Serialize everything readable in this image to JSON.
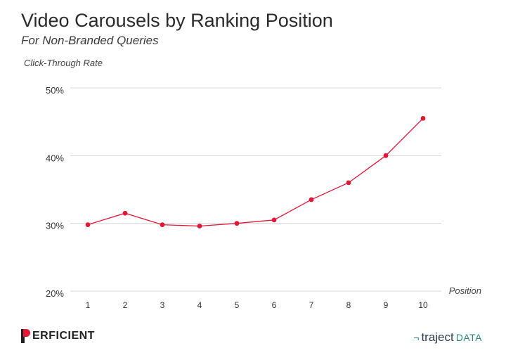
{
  "chart_data": {
    "type": "line",
    "title": "Video Carousels by Ranking Position",
    "subtitle": "For Non-Branded Queries",
    "ylabel": "Click-Through Rate",
    "xlabel": "Position",
    "x": [
      1,
      2,
      3,
      4,
      5,
      6,
      7,
      8,
      9,
      10
    ],
    "x_tick_labels": [
      "1",
      "2",
      "3",
      "4",
      "5",
      "6",
      "7",
      "8",
      "9",
      "10"
    ],
    "series": [
      {
        "values": [
          29.8,
          31.5,
          29.8,
          29.6,
          30.0,
          30.5,
          33.5,
          36.0,
          40.0,
          45.5
        ]
      }
    ],
    "ylim": [
      20,
      50
    ],
    "y_ticks": [
      20,
      30,
      40,
      50
    ],
    "y_tick_labels": [
      "20%",
      "30%",
      "40%",
      "50%"
    ],
    "grid": true,
    "line_color": "#e31837",
    "grid_color": "#d9d9d9"
  },
  "footer": {
    "left_brand": "ERFICIENT",
    "right_brand_word": "traject",
    "right_brand_suffix": "DATA",
    "right_brand_mark": "¬"
  }
}
